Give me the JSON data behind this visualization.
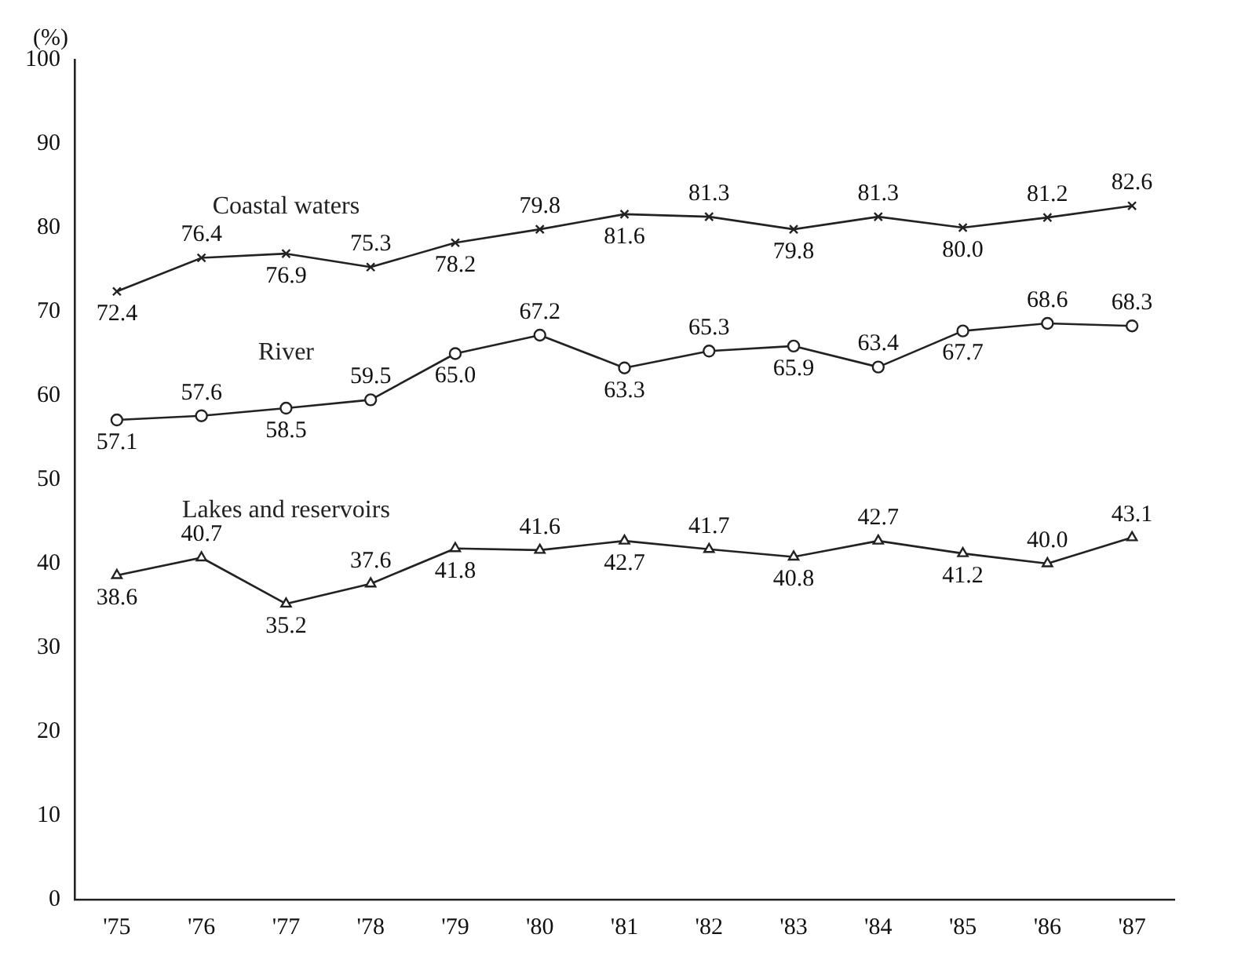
{
  "chart_data": {
    "type": "line",
    "ylabel": "(%)",
    "categories": [
      "'75",
      "'76",
      "'77",
      "'78",
      "'79",
      "'80",
      "'81",
      "'82",
      "'83",
      "'84",
      "'85",
      "'86",
      "'87"
    ],
    "series": [
      {
        "name": "Coastal waters",
        "color": "#222222",
        "marker": "cross",
        "values": [
          72.4,
          76.4,
          76.9,
          75.3,
          78.2,
          79.8,
          81.6,
          81.3,
          79.8,
          81.3,
          80.0,
          81.2,
          82.6
        ],
        "value_labels": [
          "72.4",
          "76.4",
          "76.9",
          "75.3",
          "78.2",
          "79.8",
          "81.6",
          "81.3",
          "79.8",
          "81.3",
          "80.0",
          "81.2",
          "82.6"
        ]
      },
      {
        "name": "River",
        "color": "#222222",
        "marker": "circle",
        "values": [
          57.1,
          57.6,
          58.5,
          59.5,
          65.0,
          67.2,
          63.3,
          65.3,
          65.9,
          63.4,
          67.7,
          68.6,
          68.3
        ],
        "value_labels": [
          "57.1",
          "57.6",
          "58.5",
          "59.5",
          "65.0",
          "67.2",
          "63.3",
          "65.3",
          "65.9",
          "63.4",
          "67.7",
          "68.6",
          "68.3"
        ]
      },
      {
        "name": "Lakes and reservoirs",
        "color": "#222222",
        "marker": "triangle",
        "values": [
          38.6,
          40.7,
          35.2,
          37.6,
          41.8,
          41.6,
          42.7,
          41.7,
          40.8,
          42.7,
          41.2,
          40.0,
          43.1
        ],
        "value_labels": [
          "38.6",
          "40.7",
          "35.2",
          "37.6",
          "41.8",
          "41.6",
          "42.7",
          "41.7",
          "40.8",
          "42.7",
          "41.2",
          "40.0",
          "43.1"
        ]
      }
    ],
    "ylim": [
      0,
      100
    ],
    "yticks": [
      0,
      10,
      20,
      30,
      40,
      50,
      60,
      70,
      80,
      90,
      100
    ],
    "grid": false,
    "legend": false
  }
}
